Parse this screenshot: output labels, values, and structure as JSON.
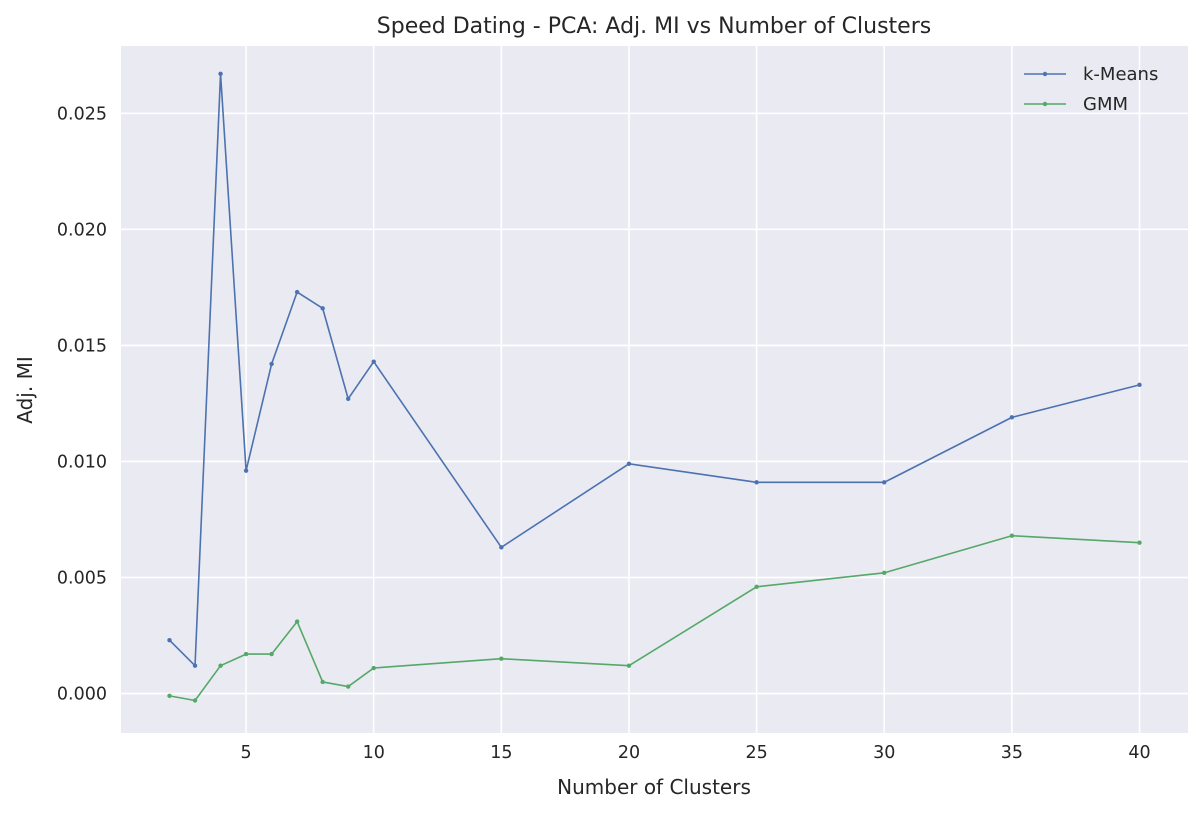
{
  "chart_data": {
    "type": "line",
    "title": "Speed Dating - PCA: Adj. MI vs Number of Clusters",
    "xlabel": "Number of Clusters",
    "ylabel": "Adj. MI",
    "xlim": [
      0.1,
      41.9
    ],
    "ylim": [
      -0.0017,
      0.0279
    ],
    "xticks": [
      5,
      10,
      15,
      20,
      25,
      30,
      35,
      40
    ],
    "xtick_labels": [
      "5",
      "10",
      "15",
      "20",
      "25",
      "30",
      "35",
      "40"
    ],
    "yticks": [
      0.0,
      0.005,
      0.01,
      0.015,
      0.02,
      0.025
    ],
    "ytick_labels": [
      "0.000",
      "0.005",
      "0.010",
      "0.015",
      "0.020",
      "0.025"
    ],
    "grid": true,
    "legend_position": "top-right",
    "x": [
      2,
      3,
      4,
      5,
      6,
      7,
      8,
      9,
      10,
      15,
      20,
      25,
      30,
      35,
      40
    ],
    "series": [
      {
        "name": "k-Means",
        "color": "#4c72b0",
        "values": [
          0.0023,
          0.0012,
          0.0267,
          0.0096,
          0.0142,
          0.0173,
          0.0166,
          0.0127,
          0.0143,
          0.0063,
          0.0099,
          0.0091,
          0.0091,
          0.0119,
          0.0133
        ]
      },
      {
        "name": "GMM",
        "color": "#55a868",
        "values": [
          -0.0001,
          -0.0003,
          0.0012,
          0.0017,
          0.0017,
          0.0031,
          0.0005,
          0.0003,
          0.0011,
          0.0015,
          0.0012,
          0.0046,
          0.0052,
          0.0068,
          0.0065
        ]
      }
    ],
    "colors": {
      "plot_background": "#eaeaf2",
      "grid": "#ffffff",
      "text": "#262626"
    }
  }
}
